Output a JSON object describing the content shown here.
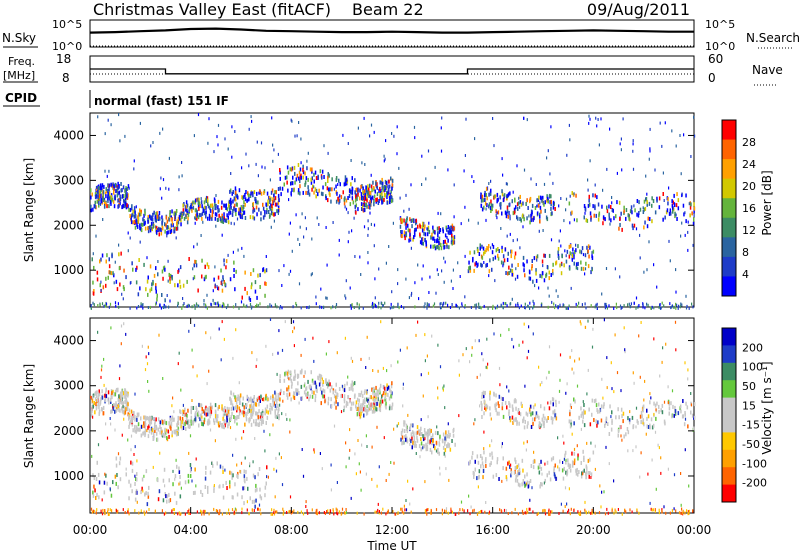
{
  "header": {
    "station": "Christmas Valley East (fitACF)",
    "beam": "Beam 22",
    "date": "09/Aug/2011"
  },
  "side_labels": {
    "nsky": "N.Sky",
    "nsearch": "N.Search",
    "freq": "Freq.",
    "freq_unit": "[MHz]",
    "nave": "Nave",
    "cpid": "CPID"
  },
  "cpid_text": "normal (fast) 151 IF",
  "colors": {
    "power_scale": [
      "#0000ff",
      "#1e3cc8",
      "#2a64a0",
      "#3c8c64",
      "#64b43c",
      "#d2c800",
      "#ffa000",
      "#ff6400",
      "#ff0000"
    ],
    "velocity_scale": [
      "#ff0000",
      "#ff6400",
      "#ffa000",
      "#ffc800",
      "#c8c8c8",
      "#c8c8c8",
      "#64c83c",
      "#3c8c64",
      "#1e3cc8",
      "#0000c8"
    ],
    "ground_scatter": "#c8c8c8"
  },
  "chart_data": [
    {
      "type": "line",
      "name": "noise-panel",
      "ylabel_left": "N.Sky",
      "ylabel_right": "N.Search",
      "left_ticks": [
        "10^5",
        "10^0"
      ],
      "right_ticks": [
        "10^5",
        "10^0"
      ],
      "x": [
        0,
        1,
        2,
        3,
        4,
        5,
        6,
        7,
        8,
        9,
        10,
        11,
        12,
        13,
        14,
        15,
        16,
        17,
        18,
        19,
        20,
        21,
        22,
        23,
        24
      ],
      "series": [
        {
          "values": [
            2.6,
            2.7,
            2.9,
            3.1,
            3.4,
            3.5,
            3.3,
            3.0,
            2.9,
            2.8,
            2.7,
            2.7,
            2.8,
            2.7,
            2.6,
            2.6,
            2.7,
            2.8,
            2.9,
            3.0,
            3.1,
            3.0,
            2.9,
            2.8,
            2.8
          ]
        }
      ]
    },
    {
      "type": "line",
      "name": "frequency-panel",
      "ylabel": "Freq. [MHz]",
      "left_ticks": [
        "18",
        "8"
      ],
      "right_ticks": [
        "60",
        "0"
      ],
      "right_label": "Nave",
      "step_x": [
        0,
        3,
        3,
        15,
        15,
        24
      ],
      "step_y": [
        13,
        13,
        10.8,
        10.8,
        13,
        13
      ]
    },
    {
      "type": "heatmap",
      "name": "power-panel",
      "ylabel": "Slant Range [km]",
      "ylim": [
        180,
        4500
      ],
      "yticks": [
        "1000",
        "2000",
        "3000",
        "4000"
      ],
      "colorbar_label": "Power [dB]",
      "colorbar_ticks": [
        "28",
        "24",
        "20",
        "16",
        "12",
        "8",
        "4"
      ],
      "colorbar_range": [
        0,
        30
      ]
    },
    {
      "type": "heatmap",
      "name": "velocity-panel",
      "ylabel": "Slant Range [km]",
      "ylim": [
        180,
        4500
      ],
      "yticks": [
        "1000",
        "2000",
        "3000",
        "4000"
      ],
      "colorbar_label": "Velocity [m s⁻¹]",
      "colorbar_ticks": [
        "200",
        "100",
        "50",
        "15",
        "-15",
        "-50",
        "-100",
        "-200"
      ],
      "colorbar_range": [
        -250,
        250
      ],
      "xticks": [
        "00:00",
        "04:00",
        "08:00",
        "12:00",
        "16:00",
        "20:00",
        "00:00"
      ],
      "xlabel": "Time UT",
      "scatter_bands": [
        {
          "start": 0.0,
          "end": 1.5,
          "center": 2600,
          "width": 260
        },
        {
          "start": 1.5,
          "end": 3.5,
          "center": 2200,
          "width": 240
        },
        {
          "start": 3.5,
          "end": 5.5,
          "center": 2300,
          "width": 240
        },
        {
          "start": 5.5,
          "end": 7.5,
          "center": 2600,
          "width": 320
        },
        {
          "start": 7.5,
          "end": 10.5,
          "center": 2950,
          "width": 320
        },
        {
          "start": 10.5,
          "end": 12.0,
          "center": 2700,
          "width": 280
        },
        {
          "start": 12.3,
          "end": 14.5,
          "center": 1900,
          "width": 260
        },
        {
          "start": 15.5,
          "end": 18.5,
          "center": 2500,
          "width": 280
        },
        {
          "start": 19.0,
          "end": 24.0,
          "center": 2350,
          "width": 320
        },
        {
          "start": 0.0,
          "end": 7.0,
          "center": 900,
          "width": 420
        },
        {
          "start": 15.0,
          "end": 20.0,
          "center": 1200,
          "width": 300
        }
      ]
    }
  ]
}
